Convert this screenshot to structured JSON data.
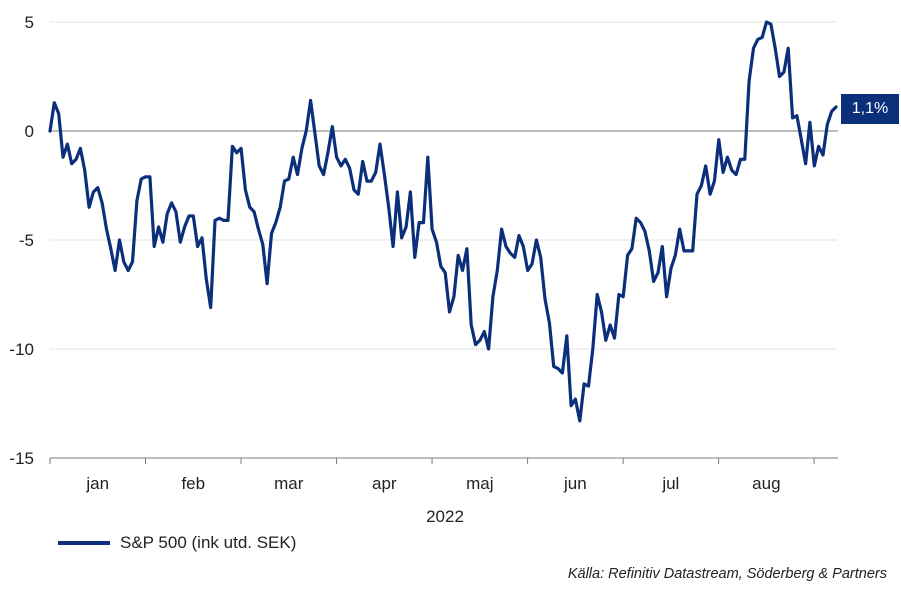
{
  "chart_data": {
    "type": "line",
    "xlabel": "2022",
    "ylabel": "",
    "ylim": [
      -15,
      5
    ],
    "yticks": [
      5,
      0,
      -5,
      -10,
      -15
    ],
    "months": [
      "jan",
      "feb",
      "mar",
      "apr",
      "maj",
      "jun",
      "jul",
      "aug"
    ],
    "grid": true,
    "legend_position": "bottom-left",
    "end_label": "1,1%",
    "source": "Källa: Refinitiv Datastream, Söderberg & Partners",
    "series": [
      {
        "name": "S&P 500 (ink utd. SEK)",
        "color": "#0b2f7a",
        "values": [
          0.0,
          1.3,
          0.8,
          -1.2,
          -0.6,
          -1.5,
          -1.3,
          -0.8,
          -1.8,
          -3.5,
          -2.8,
          -2.6,
          -3.3,
          -4.5,
          -5.4,
          -6.4,
          -5.0,
          -6.0,
          -6.4,
          -6.0,
          -3.2,
          -2.2,
          -2.1,
          -2.1,
          -5.3,
          -4.4,
          -5.1,
          -3.8,
          -3.3,
          -3.7,
          -5.1,
          -4.4,
          -3.9,
          -3.9,
          -5.3,
          -4.9,
          -6.8,
          -8.1,
          -4.1,
          -4.0,
          -4.1,
          -4.1,
          -0.7,
          -1.0,
          -0.8,
          -2.7,
          -3.5,
          -3.7,
          -4.5,
          -5.2,
          -7.0,
          -4.7,
          -4.2,
          -3.5,
          -2.3,
          -2.2,
          -1.2,
          -2.0,
          -0.8,
          0.0,
          1.4,
          -0.1,
          -1.6,
          -2.0,
          -1.0,
          0.2,
          -1.2,
          -1.6,
          -1.3,
          -1.7,
          -2.7,
          -2.9,
          -1.4,
          -2.3,
          -2.3,
          -1.9,
          -0.6,
          -2.0,
          -3.5,
          -5.3,
          -2.8,
          -4.9,
          -4.4,
          -2.8,
          -5.8,
          -4.2,
          -4.2,
          -1.2,
          -4.5,
          -5.1,
          -6.2,
          -6.5,
          -8.3,
          -7.6,
          -5.7,
          -6.4,
          -5.4,
          -8.9,
          -9.8,
          -9.6,
          -9.2,
          -10.0,
          -7.6,
          -6.4,
          -4.5,
          -5.3,
          -5.6,
          -5.8,
          -4.8,
          -5.3,
          -6.4,
          -6.1,
          -5.0,
          -5.8,
          -7.7,
          -8.8,
          -10.8,
          -10.9,
          -11.1,
          -9.4,
          -12.6,
          -12.3,
          -13.3,
          -11.6,
          -11.7,
          -10.0,
          -7.5,
          -8.3,
          -9.6,
          -8.9,
          -9.5,
          -7.5,
          -7.6,
          -5.7,
          -5.4,
          -4.0,
          -4.2,
          -4.6,
          -5.5,
          -6.9,
          -6.5,
          -5.3,
          -7.6,
          -6.3,
          -5.7,
          -4.5,
          -5.5,
          -5.5,
          -5.5,
          -2.9,
          -2.5,
          -1.6,
          -2.9,
          -2.3,
          -0.4,
          -1.9,
          -1.2,
          -1.8,
          -2.0,
          -1.3,
          -1.3,
          2.3,
          3.8,
          4.2,
          4.3,
          5.0,
          4.9,
          3.8,
          2.5,
          2.7,
          3.8,
          0.6,
          0.7,
          -0.4,
          -1.5,
          0.4,
          -1.6,
          -0.7,
          -1.1,
          0.3,
          0.9,
          1.1
        ]
      }
    ]
  }
}
